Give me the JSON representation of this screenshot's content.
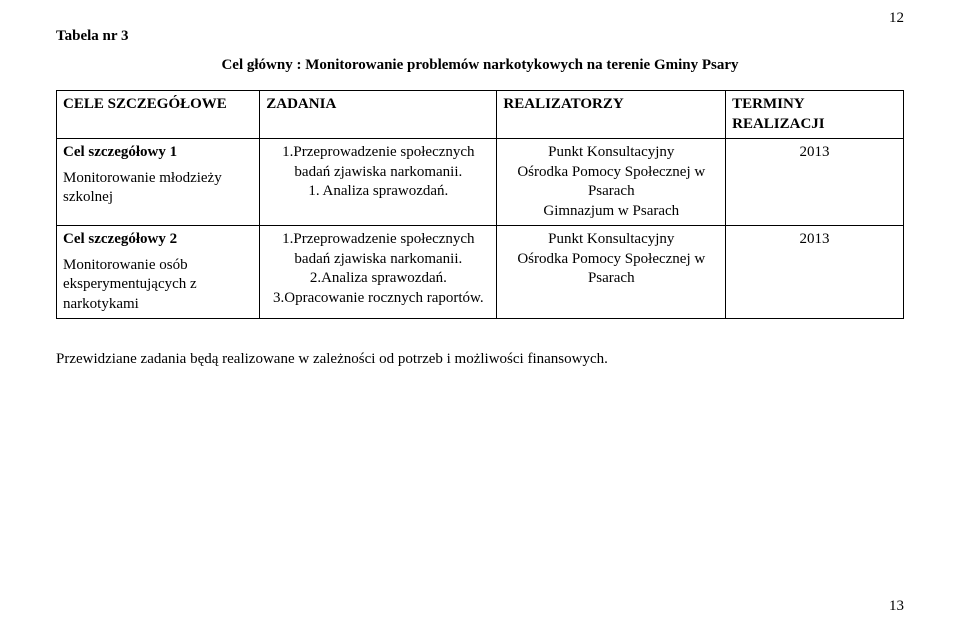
{
  "page_number_top": "12",
  "page_number_bottom": "13",
  "table_label": "Tabela  nr 3",
  "main_title": "Cel główny :  Monitorowanie problemów narkotykowych na terenie Gminy Psary",
  "headers": {
    "c1": "CELE SZCZEGÓŁOWE",
    "c2": "ZADANIA",
    "c3": "REALIZATORZY",
    "c4": "TERMINY REALIZACJI"
  },
  "rows": [
    {
      "cele_bold": "Cel szczegółowy 1",
      "cele_rest": "Monitorowanie młodzieży szkolnej",
      "zadania": "1.Przeprowadzenie społecznych badań zjawiska narkomanii.\n1.  Analiza sprawozdań.",
      "realizatorzy": "Punkt Konsultacyjny\nOśrodka Pomocy Społecznej w Psarach\nGimnazjum  w Psarach",
      "terminy": "2013"
    },
    {
      "cele_bold": "Cel szczegółowy 2",
      "cele_rest": "Monitorowanie osób eksperymentujących                           z narkotykami",
      "zadania": "1.Przeprowadzenie społecznych badań zjawiska narkomanii.\n2.Analiza sprawozdań.\n3.Opracowanie rocznych raportów.",
      "realizatorzy": "Punkt Konsultacyjny\nOśrodka Pomocy Społecznej w Psarach",
      "terminy": "2013"
    }
  ],
  "footer_note": "Przewidziane  zadania będą realizowane w zależności od potrzeb i możliwości finansowych."
}
